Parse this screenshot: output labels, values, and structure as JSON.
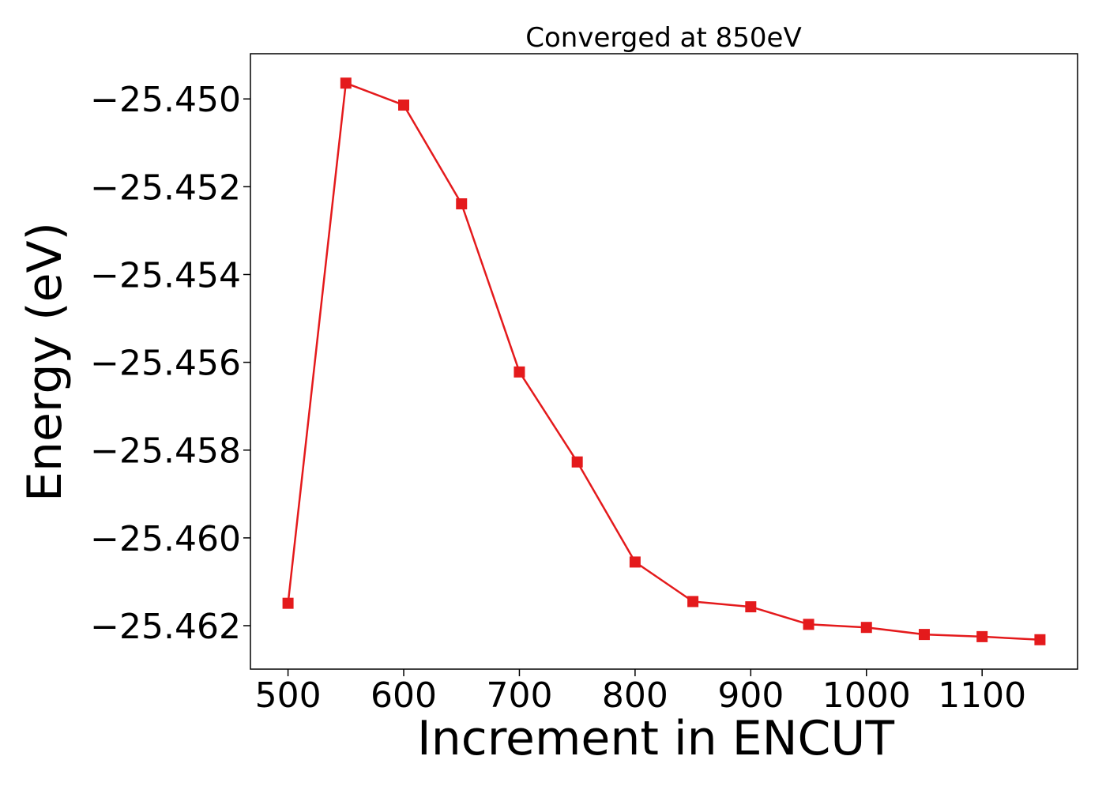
{
  "chart_data": {
    "type": "line",
    "title": "Converged at 850eV",
    "xlabel": "Increment in ENCUT",
    "ylabel": "Energy (eV)",
    "x": [
      500,
      550,
      600,
      650,
      700,
      750,
      800,
      850,
      900,
      950,
      1000,
      1050,
      1100,
      1150
    ],
    "series": [
      {
        "values": [
          -25.46149,
          -25.44964,
          -25.45014,
          -25.45239,
          -25.45622,
          -25.45827,
          -25.46055,
          -25.46145,
          -25.46157,
          -25.46197,
          -25.46204,
          -25.4622,
          -25.46225,
          -25.46232
        ],
        "color": "#e41a1c",
        "marker": "square"
      }
    ],
    "xlim": [
      467.5,
      1182.5
    ],
    "ylim": [
      -25.46299,
      -25.44897
    ],
    "xticks": [
      500,
      600,
      700,
      800,
      900,
      1000,
      1100
    ],
    "xtick_labels": [
      "500",
      "600",
      "700",
      "800",
      "900",
      "1000",
      "1100"
    ],
    "yticks": [
      -25.45,
      -25.452,
      -25.454,
      -25.456,
      -25.458,
      -25.46,
      -25.462
    ],
    "ytick_labels": [
      "−25.450",
      "−25.452",
      "−25.454",
      "−25.456",
      "−25.458",
      "−25.460",
      "−25.462"
    ],
    "grid": false,
    "legend": "none"
  }
}
